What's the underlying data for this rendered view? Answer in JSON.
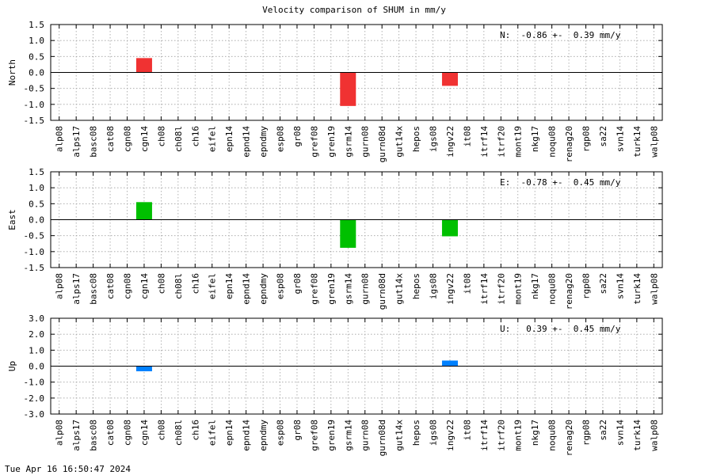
{
  "figure": {
    "title": "Velocity comparison of SHUM in mm/y",
    "timestamp": "Tue Apr 16 16:50:47 2024"
  },
  "colors": {
    "north": "#f03232",
    "east": "#00c000",
    "up": "#0080ff"
  },
  "chart_data": [
    {
      "type": "bar",
      "ylabel": "North",
      "ylim": [
        -1.5,
        1.5
      ],
      "yticks": [
        "1.5",
        "1.0",
        "0.5",
        "0.0",
        "-0.5",
        "-1.0",
        "-1.5"
      ],
      "grid": true,
      "annotation": "N:  -0.86 +-  0.39 mm/y",
      "categories": [
        "alp08",
        "alps17",
        "basc08",
        "cat08",
        "cgn08",
        "cgn14",
        "ch08",
        "ch08l",
        "ch16",
        "eifel",
        "epn14",
        "epnd14",
        "epndmy",
        "esp08",
        "gr08",
        "gref08",
        "gren19",
        "gsrm14",
        "gurn08",
        "gurn08d",
        "gut14x",
        "hepos",
        "igs08",
        "ingv22",
        "it08",
        "itrf14",
        "itrf20",
        "mont19",
        "nkg17",
        "noqu08",
        "renag20",
        "rgp08",
        "sa22",
        "svn14",
        "turk14",
        "walp08"
      ],
      "series": [
        {
          "values": [
            null,
            null,
            null,
            null,
            null,
            0.45,
            null,
            null,
            null,
            null,
            null,
            null,
            null,
            null,
            null,
            null,
            null,
            -1.05,
            null,
            null,
            null,
            null,
            null,
            -0.42,
            null,
            null,
            null,
            null,
            null,
            null,
            null,
            null,
            null,
            null,
            null,
            null
          ]
        }
      ]
    },
    {
      "type": "bar",
      "ylabel": "East",
      "ylim": [
        -1.5,
        1.5
      ],
      "yticks": [
        "1.5",
        "1.0",
        "0.5",
        "0.0",
        "-0.5",
        "-1.0",
        "-1.5"
      ],
      "grid": true,
      "annotation": "E:  -0.78 +-  0.45 mm/y",
      "categories": [
        "alp08",
        "alps17",
        "basc08",
        "cat08",
        "cgn08",
        "cgn14",
        "ch08",
        "ch08l",
        "ch16",
        "eifel",
        "epn14",
        "epnd14",
        "epndmy",
        "esp08",
        "gr08",
        "gref08",
        "gren19",
        "gsrm14",
        "gurn08",
        "gurn08d",
        "gut14x",
        "hepos",
        "igs08",
        "ingv22",
        "it08",
        "itrf14",
        "itrf20",
        "mont19",
        "nkg17",
        "noqu08",
        "renag20",
        "rgp08",
        "sa22",
        "svn14",
        "turk14",
        "walp08"
      ],
      "series": [
        {
          "values": [
            null,
            null,
            null,
            null,
            null,
            0.55,
            null,
            null,
            null,
            null,
            null,
            null,
            null,
            null,
            null,
            null,
            null,
            -0.88,
            null,
            null,
            null,
            null,
            null,
            -0.52,
            null,
            null,
            null,
            null,
            null,
            null,
            null,
            null,
            null,
            null,
            null,
            null
          ]
        }
      ]
    },
    {
      "type": "bar",
      "ylabel": "Up",
      "ylim": [
        -3.0,
        3.0
      ],
      "yticks": [
        "3.0",
        "2.0",
        "1.0",
        "0.0",
        "-1.0",
        "-2.0",
        "-3.0"
      ],
      "grid": true,
      "annotation": "U:   0.39 +-  0.45 mm/y",
      "categories": [
        "alp08",
        "alps17",
        "basc08",
        "cat08",
        "cgn08",
        "cgn14",
        "ch08",
        "ch08l",
        "ch16",
        "eifel",
        "epn14",
        "epnd14",
        "epndmy",
        "esp08",
        "gr08",
        "gref08",
        "gren19",
        "gsrm14",
        "gurn08",
        "gurn08d",
        "gut14x",
        "hepos",
        "igs08",
        "ingv22",
        "it08",
        "itrf14",
        "itrf20",
        "mont19",
        "nkg17",
        "noqu08",
        "renag20",
        "rgp08",
        "sa22",
        "svn14",
        "turk14",
        "walp08"
      ],
      "series": [
        {
          "values": [
            null,
            null,
            null,
            null,
            null,
            -0.32,
            null,
            null,
            null,
            null,
            null,
            null,
            null,
            null,
            null,
            null,
            null,
            null,
            null,
            null,
            null,
            null,
            null,
            0.35,
            null,
            null,
            null,
            null,
            null,
            null,
            null,
            null,
            null,
            null,
            null,
            null
          ]
        }
      ]
    }
  ]
}
